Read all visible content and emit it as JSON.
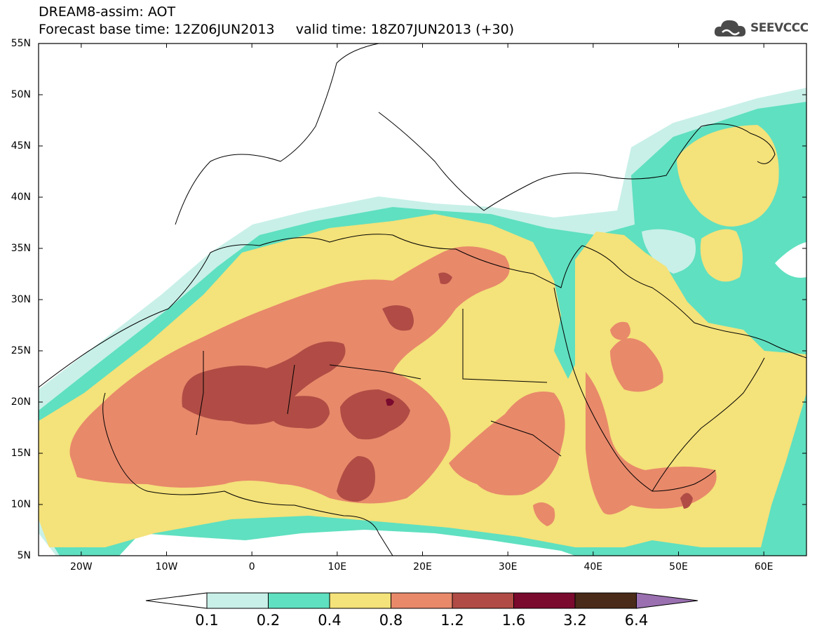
{
  "header": {
    "line1": "DREAM8-assim: AOT",
    "line2": "Forecast base time: 12Z06JUN2013     valid time: 18Z07JUN2013 (+30)",
    "logo_text": "SEEVCCC"
  },
  "map": {
    "lon_range": [
      -25,
      65
    ],
    "lat_range": [
      5,
      55
    ],
    "lat_labels": [
      "55N",
      "50N",
      "45N",
      "40N",
      "35N",
      "30N",
      "25N",
      "20N",
      "15N",
      "10N",
      "5N"
    ],
    "lon_labels": [
      "20W",
      "10W",
      "0",
      "10E",
      "20E",
      "30E",
      "40E",
      "50E",
      "60E"
    ]
  },
  "colorbar": {
    "labels": [
      "0.1",
      "0.2",
      "0.4",
      "0.8",
      "1.2",
      "1.6",
      "3.2",
      "6.4"
    ],
    "colors": {
      "under": "#ffffff",
      "c1": "#c8f0e8",
      "c2": "#5fe0c0",
      "c3": "#f4e27a",
      "c4": "#e8896a",
      "c5": "#b04c45",
      "c6": "#7a0a2e",
      "c7": "#4a2a18",
      "over": "#9a70b0"
    }
  }
}
